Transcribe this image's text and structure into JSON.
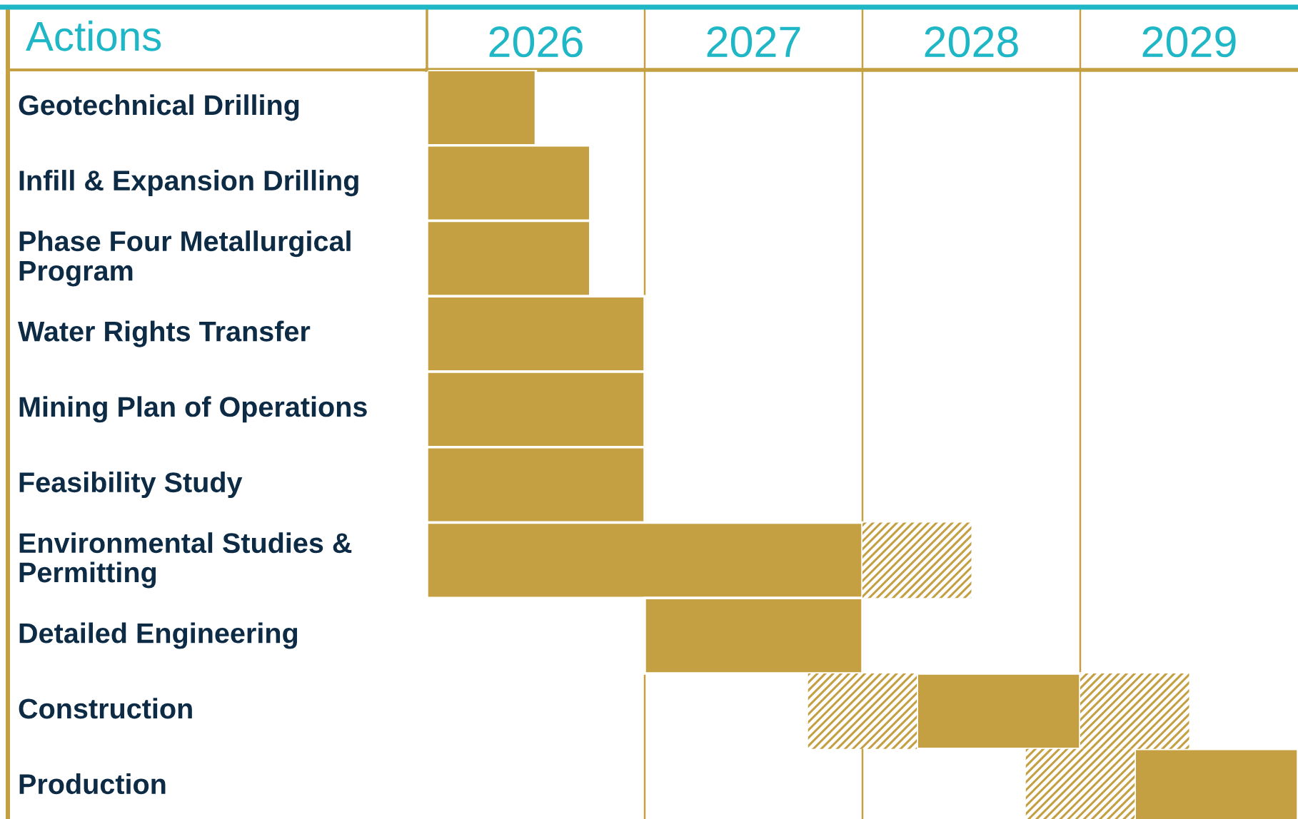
{
  "chart_data": {
    "type": "bar",
    "orientation": "horizontal",
    "ylabel": "Actions",
    "categories": [
      "Geotechnical Drilling",
      "Infill & Expansion Drilling",
      "Phase Four Metallurgical Program",
      "Water Rights Transfer",
      "Mining Plan of Operations",
      "Feasibility Study",
      "Environmental Studies & Permitting",
      "Detailed Engineering",
      "Construction",
      "Production"
    ],
    "series": [
      {
        "color": "#c4a043",
        "base": [
          2026,
          2026,
          2026,
          2026,
          2026,
          2026,
          2026,
          2027,
          2028.25,
          2029.25
        ],
        "values": [
          0.5,
          0.75,
          0.75,
          1,
          1,
          1,
          2,
          1,
          0.75,
          0.75
        ]
      },
      {
        "color": "#c4a043",
        "base": [
          null,
          null,
          null,
          null,
          null,
          null,
          null,
          null,
          2027.75,
          2028.75
        ],
        "values": [
          null,
          null,
          null,
          null,
          null,
          null,
          null,
          null,
          0.5,
          0.5
        ]
      },
      {
        "color": "#c4a043",
        "base": [
          null,
          null,
          null,
          null,
          null,
          null,
          2028,
          null,
          2029,
          null
        ],
        "values": [
          null,
          null,
          null,
          null,
          null,
          null,
          0.5,
          null,
          0.5,
          null
        ]
      }
    ],
    "xlim": [
      2026,
      2030
    ],
    "xticks": [
      {
        "value": 2026.5,
        "label": "2026"
      },
      {
        "value": 2027,
        "label": null
      },
      {
        "value": 2027.5,
        "label": "2027"
      },
      {
        "value": 2028,
        "label": null
      },
      {
        "value": 2028.5,
        "label": "2028"
      },
      {
        "value": 2029,
        "label": null
      },
      {
        "value": 2029.5,
        "label": "2029"
      }
    ],
    "grid": "x",
    "legend": false
  }
}
